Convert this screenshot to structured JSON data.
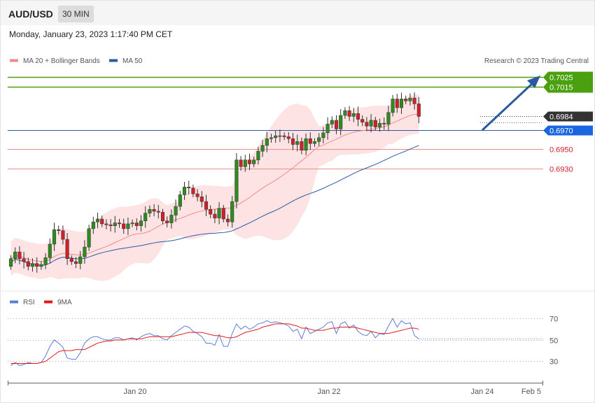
{
  "header": {
    "symbol": "AUD/USD",
    "timeframe": "30 MIN",
    "datetime": "Monday, January 23, 2023 1:17:40 PM CET"
  },
  "legend": [
    {
      "label": "MA 20 + Bollinger Bands",
      "color": "#f28a8a"
    },
    {
      "label": "MA 50",
      "color": "#2c5aa0"
    }
  ],
  "rsi_legend": [
    {
      "label": "RSI",
      "color": "#5b7fd6"
    },
    {
      "label": "9MA",
      "color": "#e31a1c"
    }
  ],
  "credit": "Research © 2023 Trading Central",
  "colors": {
    "up": "#2e8b1e",
    "down": "#d0202a",
    "resistance": "#4aa00f",
    "support": "#e89090",
    "ma50": "#2c5aa0",
    "current": "#333333",
    "arrow": "#2c5aa0",
    "band_fill": "#fde3e3"
  },
  "chart_data": [
    {
      "type": "candlestick",
      "y_range": [
        0.6805,
        0.7045
      ],
      "x_labels": [
        "Jan 20",
        "Jan 22",
        "Jan 24",
        "Feb 5"
      ],
      "price_levels": [
        {
          "label": "0.7025",
          "value": 0.7025,
          "kind": "resistance"
        },
        {
          "label": "0.7015",
          "value": 0.7015,
          "kind": "resistance"
        },
        {
          "label": "0.6984",
          "value": 0.6984,
          "kind": "current"
        },
        {
          "label": "0.6970",
          "value": 0.697,
          "kind": "pivot"
        },
        {
          "label": "0.6950",
          "value": 0.695,
          "kind": "support"
        },
        {
          "label": "0.6930",
          "value": 0.693,
          "kind": "support"
        }
      ],
      "close": [
        0.6837,
        0.6844,
        0.6837,
        0.6834,
        0.6829,
        0.6832,
        0.6829,
        0.6831,
        0.6838,
        0.6852,
        0.6867,
        0.6866,
        0.6857,
        0.6837,
        0.6834,
        0.6832,
        0.6839,
        0.6849,
        0.6868,
        0.6875,
        0.6878,
        0.6873,
        0.6872,
        0.6871,
        0.6874,
        0.6873,
        0.6868,
        0.6873,
        0.6874,
        0.6871,
        0.6876,
        0.6884,
        0.6888,
        0.6886,
        0.6885,
        0.6876,
        0.6874,
        0.6882,
        0.6891,
        0.6903,
        0.6911,
        0.691,
        0.6904,
        0.6901,
        0.6896,
        0.6888,
        0.6883,
        0.6879,
        0.6889,
        0.6878,
        0.6875,
        0.6896,
        0.6939,
        0.6932,
        0.6939,
        0.6935,
        0.6939,
        0.6948,
        0.6954,
        0.6961,
        0.6962,
        0.6964,
        0.6964,
        0.6963,
        0.6961,
        0.6955,
        0.6958,
        0.6949,
        0.6961,
        0.6956,
        0.6958,
        0.6962,
        0.6967,
        0.6976,
        0.698,
        0.6971,
        0.6985,
        0.699,
        0.6984,
        0.6987,
        0.6981,
        0.6978,
        0.6974,
        0.698,
        0.6973,
        0.6977,
        0.6976,
        0.6988,
        0.7002,
        0.6993,
        0.7002,
        0.7,
        0.7003,
        0.6997,
        0.6984
      ]
    },
    {
      "type": "line",
      "panel": "RSI",
      "y_ticks": [
        70,
        50,
        30
      ],
      "series": [
        {
          "name": "RSI",
          "values": [
            26,
            29,
            26,
            27,
            29,
            28,
            28,
            29,
            35,
            44,
            50,
            47,
            43,
            33,
            32,
            32,
            38,
            47,
            51,
            53,
            53,
            51,
            50,
            50,
            52,
            52,
            50,
            51,
            52,
            50,
            53,
            55,
            56,
            54,
            54,
            51,
            50,
            54,
            57,
            60,
            63,
            62,
            58,
            56,
            53,
            47,
            47,
            45,
            55,
            44,
            44,
            56,
            65,
            60,
            63,
            60,
            62,
            65,
            66,
            68,
            66,
            67,
            66,
            65,
            63,
            58,
            60,
            51,
            62,
            56,
            58,
            60,
            62,
            66,
            67,
            56,
            65,
            67,
            61,
            64,
            58,
            55,
            54,
            58,
            52,
            56,
            55,
            63,
            70,
            62,
            68,
            65,
            66,
            54,
            51
          ]
        },
        {
          "name": "9MA",
          "values": [
            28,
            28,
            28,
            28,
            28,
            28,
            28,
            29,
            30,
            33,
            36,
            39,
            40,
            40,
            40,
            41,
            41,
            41,
            43,
            45,
            47,
            48,
            49,
            49,
            50,
            50,
            50,
            51,
            51,
            51,
            51,
            52,
            53,
            53,
            53,
            53,
            53,
            53,
            54,
            55,
            56,
            57,
            57,
            57,
            57,
            56,
            55,
            54,
            54,
            53,
            52,
            52,
            53,
            55,
            57,
            58,
            59,
            60,
            62,
            63,
            64,
            65,
            65,
            65,
            65,
            64,
            63,
            61,
            61,
            60,
            59,
            59,
            59,
            60,
            61,
            61,
            62,
            62,
            62,
            62,
            61,
            60,
            59,
            58,
            57,
            56,
            56,
            56,
            57,
            58,
            59,
            60,
            61,
            61,
            60
          ]
        }
      ]
    }
  ]
}
